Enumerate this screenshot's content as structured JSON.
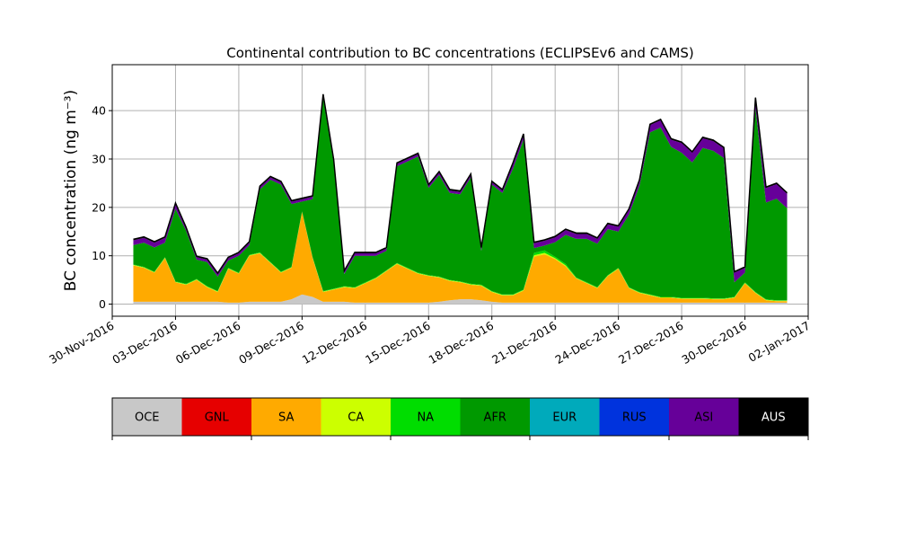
{
  "chart_data": {
    "type": "area",
    "title": "Continental contribution to BC concentrations (ECLIPSEv6 and CAMS)",
    "xlabel": "",
    "ylabel": "BC concentration (ng m⁻³)",
    "ylim": [
      -2.5,
      49.5
    ],
    "xlim": [
      "2016-11-30",
      "2017-01-02"
    ],
    "yticks": [
      0,
      10,
      20,
      30,
      40
    ],
    "xticks": [
      "2016-11-30",
      "2016-12-03",
      "2016-12-06",
      "2016-12-09",
      "2016-12-12",
      "2016-12-15",
      "2016-12-18",
      "2016-12-21",
      "2016-12-24",
      "2016-12-27",
      "2016-12-30",
      "2017-01-02"
    ],
    "xtick_labels": [
      "30-Nov-2016",
      "03-Dec-2016",
      "06-Dec-2016",
      "09-Dec-2016",
      "12-Dec-2016",
      "15-Dec-2016",
      "18-Dec-2016",
      "21-Dec-2016",
      "24-Dec-2016",
      "27-Dec-2016",
      "30-Dec-2016",
      "02-Jan-2017"
    ],
    "grid": true,
    "x": [
      "2016-12-01T00:00",
      "2016-12-01T12:00",
      "2016-12-02T00:00",
      "2016-12-02T12:00",
      "2016-12-03T00:00",
      "2016-12-03T12:00",
      "2016-12-04T00:00",
      "2016-12-04T12:00",
      "2016-12-05T00:00",
      "2016-12-05T12:00",
      "2016-12-06T00:00",
      "2016-12-06T12:00",
      "2016-12-07T00:00",
      "2016-12-07T12:00",
      "2016-12-08T00:00",
      "2016-12-08T12:00",
      "2016-12-09T00:00",
      "2016-12-09T12:00",
      "2016-12-10T00:00",
      "2016-12-10T12:00",
      "2016-12-11T00:00",
      "2016-12-11T12:00",
      "2016-12-12T00:00",
      "2016-12-12T12:00",
      "2016-12-13T00:00",
      "2016-12-13T12:00",
      "2016-12-14T00:00",
      "2016-12-14T12:00",
      "2016-12-15T00:00",
      "2016-12-15T12:00",
      "2016-12-16T00:00",
      "2016-12-16T12:00",
      "2016-12-17T00:00",
      "2016-12-17T12:00",
      "2016-12-18T00:00",
      "2016-12-18T12:00",
      "2016-12-19T00:00",
      "2016-12-19T12:00",
      "2016-12-20T00:00",
      "2016-12-20T12:00",
      "2016-12-21T00:00",
      "2016-12-21T12:00",
      "2016-12-22T00:00",
      "2016-12-22T12:00",
      "2016-12-23T00:00",
      "2016-12-23T12:00",
      "2016-12-24T00:00",
      "2016-12-24T12:00",
      "2016-12-25T00:00",
      "2016-12-25T12:00",
      "2016-12-26T00:00",
      "2016-12-26T12:00",
      "2016-12-27T00:00",
      "2016-12-27T12:00",
      "2016-12-28T00:00",
      "2016-12-28T12:00",
      "2016-12-29T00:00",
      "2016-12-29T12:00",
      "2016-12-30T00:00",
      "2016-12-30T12:00",
      "2016-12-31T00:00",
      "2016-12-31T12:00",
      "2017-01-01T00:00"
    ],
    "series": [
      {
        "name": "OCE",
        "color": "#c8c8c8",
        "values": [
          0.5,
          0.5,
          0.5,
          0.5,
          0.5,
          0.5,
          0.5,
          0.5,
          0.5,
          0.3,
          0.3,
          0.5,
          0.5,
          0.5,
          0.5,
          1.0,
          2.0,
          1.5,
          0.5,
          0.5,
          0.5,
          0.3,
          0.3,
          0.3,
          0.3,
          0.3,
          0.3,
          0.3,
          0.3,
          0.5,
          0.8,
          1.0,
          1.0,
          0.8,
          0.5,
          0.3,
          0.3,
          0.3,
          0.3,
          0.3,
          0.3,
          0.3,
          0.3,
          0.3,
          0.3,
          0.3,
          0.3,
          0.3,
          0.3,
          0.3,
          0.3,
          0.3,
          0.3,
          0.3,
          0.3,
          0.3,
          0.3,
          0.3,
          0.3,
          0.3,
          0.3,
          0.3,
          0.3
        ]
      },
      {
        "name": "GNL",
        "color": "#e60000",
        "values": [
          0,
          0,
          0,
          0,
          0,
          0,
          0,
          0,
          0,
          0,
          0,
          0,
          0,
          0,
          0,
          0,
          0,
          0,
          0,
          0,
          0,
          0,
          0,
          0,
          0,
          0,
          0,
          0,
          0,
          0,
          0,
          0,
          0,
          0,
          0,
          0,
          0,
          0,
          0,
          0,
          0,
          0,
          0,
          0,
          0,
          0,
          0,
          0,
          0,
          0,
          0,
          0,
          0,
          0,
          0,
          0,
          0,
          0,
          0,
          0,
          0,
          0,
          0
        ]
      },
      {
        "name": "SA",
        "color": "#ffaa00",
        "values": [
          7.5,
          7.0,
          6.0,
          9.0,
          4.0,
          3.5,
          4.5,
          3.0,
          2.0,
          7.0,
          6.0,
          9.5,
          10.0,
          8.0,
          6.0,
          6.5,
          17.0,
          8.0,
          2.0,
          2.5,
          3.0,
          3.0,
          4.0,
          5.0,
          6.5,
          8.0,
          7.0,
          6.0,
          5.5,
          5.0,
          4.0,
          3.5,
          3.0,
          3.0,
          2.0,
          1.5,
          1.5,
          2.5,
          9.5,
          10.0,
          9.0,
          7.5,
          5.0,
          4.0,
          3.0,
          5.5,
          7.0,
          3.0,
          2.0,
          1.5,
          1.0,
          1.0,
          0.8,
          0.8,
          0.8,
          0.7,
          0.7,
          1.0,
          4.0,
          2.0,
          0.5,
          0.3,
          0.3
        ]
      },
      {
        "name": "CA",
        "color": "#ccff00",
        "values": [
          0.1,
          0.1,
          0.1,
          0.1,
          0.1,
          0.1,
          0.1,
          0.1,
          0.1,
          0.1,
          0.1,
          0.1,
          0.1,
          0.1,
          0.1,
          0.1,
          0.1,
          0.1,
          0.1,
          0.1,
          0.1,
          0.1,
          0.1,
          0.1,
          0.1,
          0.1,
          0.1,
          0.1,
          0.1,
          0.1,
          0.1,
          0.1,
          0.1,
          0.1,
          0.1,
          0.1,
          0.1,
          0.1,
          0.3,
          0.3,
          0.2,
          0.2,
          0.1,
          0.1,
          0.1,
          0.1,
          0.1,
          0.1,
          0.1,
          0.1,
          0.1,
          0.1,
          0.1,
          0.1,
          0.1,
          0.1,
          0.1,
          0.1,
          0.1,
          0.1,
          0.1,
          0.1,
          0.1
        ]
      },
      {
        "name": "NA",
        "color": "#00dd00",
        "values": [
          0.1,
          0.1,
          0.1,
          0.1,
          0.1,
          0.1,
          0.1,
          0.1,
          0.1,
          0.1,
          0.1,
          0.1,
          0.1,
          0.1,
          0.1,
          0.1,
          0.1,
          0.1,
          0.1,
          0.1,
          0.1,
          0.1,
          0.1,
          0.1,
          0.1,
          0.1,
          0.1,
          0.1,
          0.1,
          0.1,
          0.1,
          0.1,
          0.1,
          0.1,
          0.1,
          0.1,
          0.1,
          0.1,
          0.5,
          0.5,
          0.3,
          0.3,
          0.1,
          0.1,
          0.1,
          0.1,
          0.1,
          0.1,
          0.1,
          0.1,
          0.1,
          0.1,
          0.1,
          0.1,
          0.1,
          0.1,
          0.1,
          0.1,
          0.1,
          0.1,
          0.1,
          0.1,
          0.1
        ]
      },
      {
        "name": "AFR",
        "color": "#009900",
        "values": [
          4.0,
          5.0,
          5.0,
          3.0,
          15.0,
          11.0,
          4.0,
          5.0,
          3.0,
          1.5,
          3.5,
          2.0,
          13.0,
          17.0,
          18.0,
          13.0,
          2.0,
          12.0,
          40.0,
          26.0,
          2.5,
          6.5,
          5.5,
          4.5,
          4.0,
          20.0,
          22.0,
          24.0,
          18.0,
          21.0,
          18.0,
          18.0,
          22.0,
          7.0,
          22.0,
          21.0,
          26.0,
          31.0,
          1.0,
          1.0,
          3.0,
          6.0,
          8.0,
          9.0,
          9.0,
          9.5,
          7.5,
          15.0,
          22.0,
          33.5,
          35.0,
          31.0,
          30.0,
          28.0,
          31.0,
          30.5,
          29.0,
          3.0,
          2.0,
          38.0,
          20.0,
          21.0,
          19.0
        ]
      },
      {
        "name": "EUR",
        "color": "#00aabb",
        "values": [
          0,
          0,
          0,
          0,
          0,
          0,
          0,
          0,
          0,
          0,
          0,
          0,
          0,
          0,
          0,
          0,
          0,
          0,
          0,
          0,
          0,
          0,
          0,
          0,
          0,
          0,
          0,
          0,
          0,
          0,
          0,
          0,
          0,
          0,
          0,
          0,
          0,
          0,
          0,
          0,
          0,
          0,
          0,
          0,
          0,
          0,
          0,
          0,
          0,
          0,
          0,
          0,
          0,
          0,
          0,
          0,
          0,
          0,
          0,
          0,
          0,
          0,
          0
        ]
      },
      {
        "name": "RUS",
        "color": "#0033dd",
        "values": [
          0,
          0,
          0,
          0,
          0,
          0,
          0,
          0,
          0,
          0,
          0,
          0,
          0,
          0,
          0,
          0,
          0,
          0,
          0,
          0,
          0,
          0,
          0,
          0,
          0,
          0,
          0,
          0,
          0,
          0,
          0,
          0,
          0,
          0,
          0,
          0,
          0,
          0,
          0,
          0,
          0,
          0,
          0,
          0,
          0,
          0,
          0,
          0,
          0,
          0,
          0,
          0,
          0,
          0,
          0,
          0,
          0,
          0,
          0,
          0,
          0,
          0,
          0
        ]
      },
      {
        "name": "ASI",
        "color": "#660099",
        "values": [
          1.0,
          1.0,
          1.0,
          1.0,
          1.0,
          0.5,
          0.5,
          0.5,
          0.5,
          0.5,
          0.5,
          0.5,
          0.5,
          0.5,
          0.5,
          0.5,
          0.5,
          0.5,
          0.5,
          0.5,
          0.5,
          0.5,
          0.5,
          0.5,
          0.5,
          0.5,
          0.5,
          0.5,
          0.5,
          0.5,
          0.5,
          0.5,
          0.5,
          0.5,
          0.5,
          0.5,
          1.0,
          1.0,
          1.0,
          1.0,
          1.0,
          1.0,
          1.0,
          1.0,
          1.0,
          1.0,
          1.0,
          1.0,
          1.0,
          1.5,
          1.5,
          1.5,
          2.0,
          2.0,
          2.0,
          2.0,
          2.0,
          2.0,
          1.0,
          2.0,
          3.0,
          3.0,
          3.0
        ]
      },
      {
        "name": "AUS",
        "color": "#000000",
        "values": [
          0.2,
          0.2,
          0.2,
          0.2,
          0.2,
          0.2,
          0.2,
          0.2,
          0.2,
          0.2,
          0.2,
          0.2,
          0.2,
          0.2,
          0.2,
          0.2,
          0.2,
          0.2,
          0.2,
          0.2,
          0.2,
          0.2,
          0.2,
          0.2,
          0.2,
          0.2,
          0.2,
          0.2,
          0.2,
          0.2,
          0.2,
          0.2,
          0.2,
          0.2,
          0.2,
          0.2,
          0.2,
          0.2,
          0.2,
          0.2,
          0.2,
          0.2,
          0.2,
          0.2,
          0.2,
          0.2,
          0.2,
          0.2,
          0.2,
          0.2,
          0.2,
          0.2,
          0.2,
          0.2,
          0.2,
          0.2,
          0.2,
          0.2,
          0.2,
          0.2,
          0.2,
          0.2,
          0.2
        ]
      }
    ],
    "legend": {
      "labels": [
        "OCE",
        "GNL",
        "SA",
        "CA",
        "NA",
        "AFR",
        "EUR",
        "RUS",
        "ASI",
        "AUS"
      ],
      "colors": [
        "#c8c8c8",
        "#e60000",
        "#ffaa00",
        "#ccff00",
        "#00dd00",
        "#009900",
        "#00aabb",
        "#0033dd",
        "#660099",
        "#000000"
      ],
      "label_colors": [
        "#000000",
        "#000000",
        "#000000",
        "#000000",
        "#000000",
        "#000000",
        "#000000",
        "#000000",
        "#000000",
        "#ffffff"
      ],
      "placement": "bottom colorbar"
    },
    "outline_color": "#000000",
    "grid_color": "#b0b0b0"
  }
}
